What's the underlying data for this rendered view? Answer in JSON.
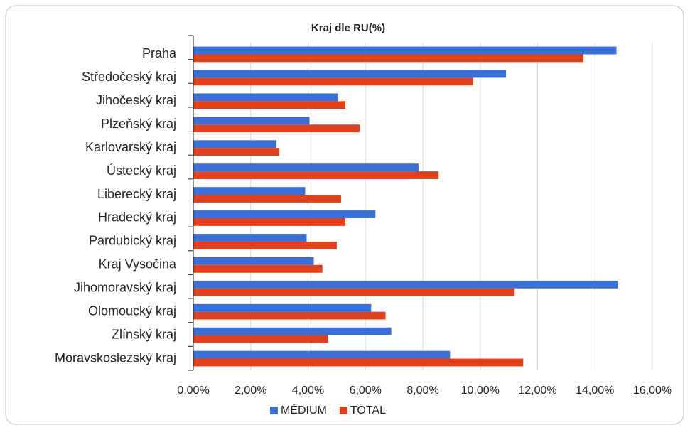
{
  "chart_data": {
    "type": "barh",
    "title": "Kraj dle RU(%)",
    "categories": [
      "Praha",
      "Středočeský kraj",
      "Jihočeský kraj",
      "Plzeňský kraj",
      "Karlovarský kraj",
      "Ústecký kraj",
      "Liberecký kraj",
      "Hradecký kraj",
      "Pardubický kraj",
      "Kraj Vysočina",
      "Jihomoravský kraj",
      "Olomoucký kraj",
      "Zlínský kraj",
      "Moravskoslezský kraj"
    ],
    "series": [
      {
        "name": "MÉDIUM",
        "color": "#3b6fd8",
        "values": [
          14.75,
          10.9,
          5.05,
          4.05,
          2.9,
          7.85,
          3.9,
          6.35,
          3.95,
          4.2,
          14.8,
          6.2,
          6.9,
          8.95
        ]
      },
      {
        "name": "TOTAL",
        "color": "#e0401c",
        "values": [
          13.6,
          9.75,
          5.3,
          5.8,
          3.0,
          8.55,
          5.15,
          5.3,
          5.0,
          4.5,
          11.2,
          6.7,
          4.7,
          11.5
        ]
      }
    ],
    "xlim": [
      0,
      16
    ],
    "xticks": [
      {
        "value": 0,
        "label": "0,00%"
      },
      {
        "value": 2,
        "label": "2,00%"
      },
      {
        "value": 4,
        "label": "4,00%"
      },
      {
        "value": 6,
        "label": "6,00%"
      },
      {
        "value": 8,
        "label": "8,00%"
      },
      {
        "value": 10,
        "label": "10,00%"
      },
      {
        "value": 12,
        "label": "12,00%"
      },
      {
        "value": 14,
        "label": "14,00%"
      },
      {
        "value": 16,
        "label": "16,00%"
      }
    ],
    "grid": true,
    "legend": "bottom"
  }
}
